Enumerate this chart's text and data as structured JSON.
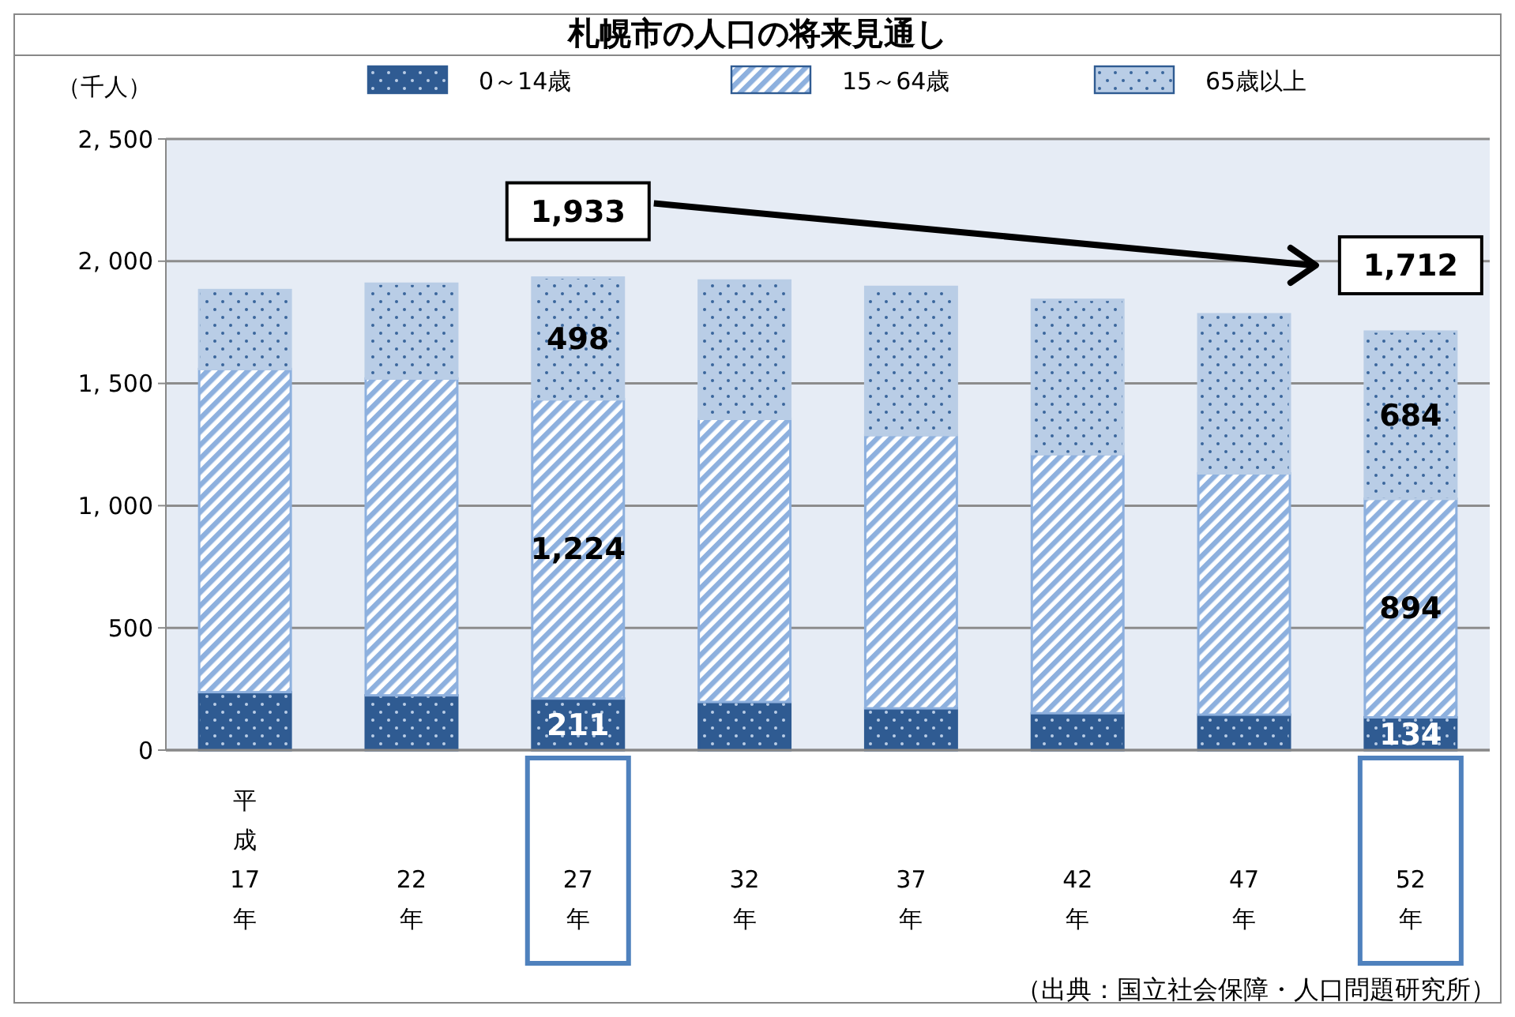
{
  "chart_data": {
    "type": "bar",
    "stacked": true,
    "title": "札幌市の人口の将来見通し",
    "ylabel": "（千人）",
    "categories": [
      "平成17年",
      "22年",
      "27年",
      "32年",
      "37年",
      "42年",
      "47年",
      "52年"
    ],
    "series": [
      {
        "name": "0～14歳",
        "color": "#2f5b92",
        "values": [
          237,
          224,
          211,
          197,
          171,
          151,
          145,
          134
        ],
        "value_labels": [
          null,
          null,
          "211",
          null,
          null,
          null,
          null,
          "134"
        ]
      },
      {
        "name": "15～64歳",
        "color": "#8db0de",
        "values": [
          1322,
          1296,
          1224,
          1158,
          1118,
          1060,
          987,
          894
        ],
        "value_labels": [
          null,
          null,
          "1,224",
          null,
          null,
          null,
          null,
          "894"
        ]
      },
      {
        "name": "65歳以上",
        "color": "#b9cde6",
        "values": [
          323,
          388,
          498,
          566,
          606,
          631,
          651,
          684
        ],
        "value_labels": [
          null,
          null,
          "498",
          null,
          null,
          null,
          null,
          "684"
        ]
      }
    ],
    "ylim": [
      0,
      2500
    ],
    "yticks": [
      {
        "value": 0,
        "label": "0"
      },
      {
        "value": 500,
        "label": "500"
      },
      {
        "value": 1000,
        "label": "1, 000"
      },
      {
        "value": 1500,
        "label": "1, 500"
      },
      {
        "value": 2000,
        "label": "2, 000"
      },
      {
        "value": 2500,
        "label": "2, 500"
      }
    ],
    "grid": "y",
    "legend": "top",
    "annotations": [
      {
        "text": "1,933",
        "x": "27年",
        "y": 1933
      },
      {
        "text": "1,712",
        "x": "52年",
        "y": 1712
      },
      "（出典：国立社会保障・人口問題研究所）"
    ]
  }
}
